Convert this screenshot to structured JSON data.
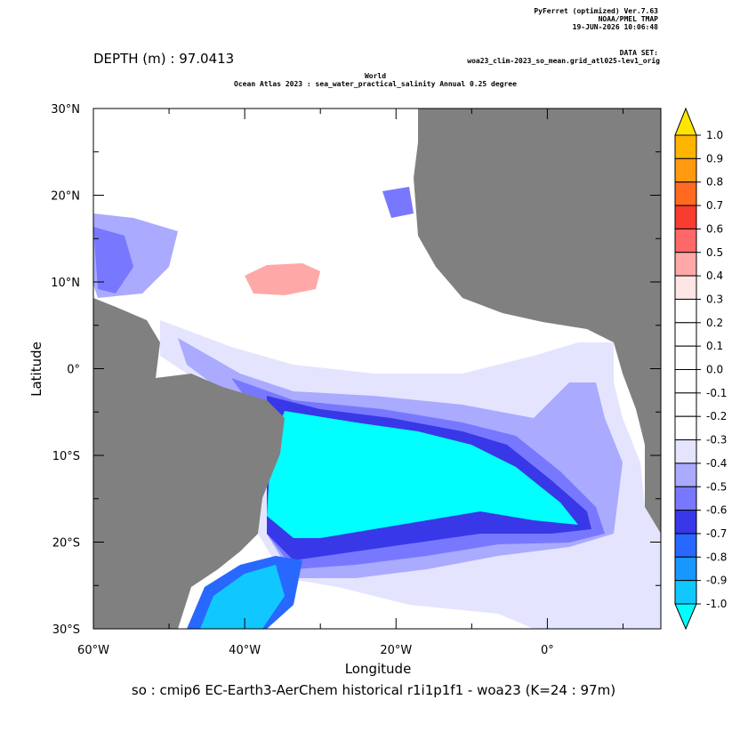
{
  "chart_data": {
    "type": "map",
    "header": [
      "PyFerret (optimized) Ver.7.63",
      "NOAA/PMEL TMAP",
      "19-JUN-2026 10:06:48"
    ],
    "dataset": [
      "DATA SET:",
      "woa23_clim-2023_so_mean.grid_atl025-lev1_orig"
    ],
    "depth_label": "DEPTH (m) : 97.0413",
    "title": [
      "World",
      "Ocean Atlas 2023 : sea_water_practical_salinity Annual  0.25 degree"
    ],
    "xlabel": "Longitude",
    "ylabel": "Latitude",
    "footer": "so : cmip6 EC-Earth3-AerChem historical r1i1p1f1 - woa23  (K=24 : 97m)",
    "xlim": [
      -60,
      15
    ],
    "ylim": [
      -30,
      30
    ],
    "xticks": [
      {
        "value": -60,
        "label": "60°W"
      },
      {
        "value": -40,
        "label": "40°W"
      },
      {
        "value": -20,
        "label": "20°W"
      },
      {
        "value": 0,
        "label": "0°"
      }
    ],
    "xminor_ticks": [
      -50,
      -30,
      -10,
      10
    ],
    "yticks": [
      {
        "value": -30,
        "label": "30°S"
      },
      {
        "value": -20,
        "label": "20°S"
      },
      {
        "value": -10,
        "label": "10°S"
      },
      {
        "value": 0,
        "label": "0°"
      },
      {
        "value": 10,
        "label": "10°N"
      },
      {
        "value": 20,
        "label": "20°N"
      },
      {
        "value": 30,
        "label": "30°N"
      }
    ],
    "yminor_ticks": [
      -25,
      -15,
      -5,
      5,
      15,
      25
    ],
    "colorbar": {
      "levels": [
        {
          "value": 1,
          "label": "1.0"
        },
        0.9,
        0.8,
        0.7,
        0.6,
        0.5,
        0.4,
        0.3,
        0.2,
        0.1,
        {
          "value": 0,
          "label": "0.0"
        },
        -0.1,
        -0.2,
        -0.3,
        -0.4,
        -0.5,
        -0.6,
        -0.7,
        -0.8,
        -0.9,
        {
          "value": -1,
          "label": "-1.0"
        }
      ],
      "colors": [
        "#ffb400",
        "#ff9a10",
        "#ff6a20",
        "#f83c30",
        "#ff6868",
        "#ffa8a8",
        "#ffe6e6",
        "#ffffff",
        "#ffffff",
        "#ffffff",
        "#ffffff",
        "#ffffff",
        "#ffffff",
        "#e4e4ff",
        "#aaaaff",
        "#7878ff",
        "#3838e8",
        "#2868ff",
        "#1898ff",
        "#10c8ff"
      ],
      "over_color": "#ffe600",
      "under_color": "#00ffff"
    }
  }
}
